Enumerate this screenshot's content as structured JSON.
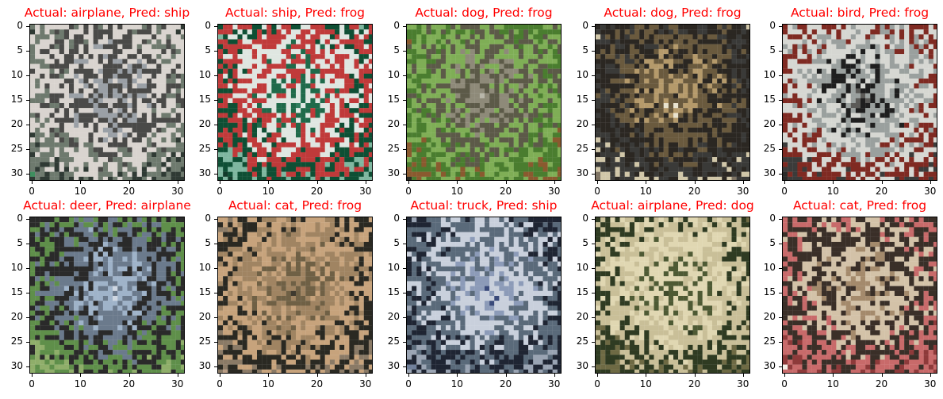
{
  "title_color": "#ff0000",
  "ticks": [
    "0",
    "5",
    "10",
    "15",
    "20",
    "25",
    "30"
  ],
  "xticks": [
    "0",
    "10",
    "20",
    "30"
  ],
  "panels": [
    {
      "title": "Actual: airplane, Pred: ship",
      "subject": "airplane-thumbnail",
      "palette": [
        "#c9c6c4",
        "#9aa0a6",
        "#4a4a48",
        "#d9d4cf",
        "#6e7a6e",
        "#2f3a34",
        "#3f8f5f"
      ]
    },
    {
      "title": "Actual: ship, Pred: frog",
      "subject": "ship-thumbnail",
      "palette": [
        "#2f7f5f",
        "#1f6a4a",
        "#dfe6e1",
        "#c03a3a",
        "#0e4f34",
        "#7fb7a0",
        "#123a2a"
      ]
    },
    {
      "title": "Actual: dog, Pred: frog",
      "subject": "dog-thumbnail",
      "palette": [
        "#b9b7aa",
        "#8e8a79",
        "#5c5a48",
        "#7fae56",
        "#4a7d2f",
        "#8a5a2f",
        "#2a2a22"
      ]
    },
    {
      "title": "Actual: dog, Pred: frog",
      "subject": "dog-thumbnail",
      "palette": [
        "#e9e3cf",
        "#b59a6b",
        "#6a5a3e",
        "#2b2722",
        "#3a3a38",
        "#d1c7a9",
        "#7e7363"
      ]
    },
    {
      "title": "Actual: bird, Pred: frog",
      "subject": "bird-thumbnail",
      "palette": [
        "#5b5a57",
        "#1f1f1f",
        "#9aa09e",
        "#d6d7d2",
        "#7f2a22",
        "#3b3b3a",
        "#2a2a28"
      ]
    },
    {
      "title": "Actual: deer, Pred: airplane",
      "subject": "deer-thumbnail",
      "palette": [
        "#cfd7e2",
        "#9fb3c9",
        "#6b7a8c",
        "#2a2a2a",
        "#5f8f4a",
        "#8fae6a",
        "#3a3f3a"
      ]
    },
    {
      "title": "Actual: cat, Pred: frog",
      "subject": "cat-thumbnail",
      "palette": [
        "#3f3a2f",
        "#6f6045",
        "#a08462",
        "#c7a37c",
        "#2a2922",
        "#8a7a66",
        "#b89c84"
      ]
    },
    {
      "title": "Actual: truck, Pred: ship",
      "subject": "truck-thumbnail",
      "palette": [
        "#3a4a7a",
        "#8c9bb8",
        "#c9d0dc",
        "#5a6a7a",
        "#1f2533",
        "#9aa4b3",
        "#6f7f9a"
      ]
    },
    {
      "title": "Actual: airplane, Pred: dog",
      "subject": "airplane-thumbnail",
      "palette": [
        "#3e4a2a",
        "#4e5a34",
        "#e0d7b2",
        "#c9bf98",
        "#2f3b22",
        "#6e6a44",
        "#f0e8c8"
      ]
    },
    {
      "title": "Actual: cat, Pred: frog",
      "subject": "cat-thumbnail",
      "palette": [
        "#6e5a44",
        "#a48a6c",
        "#d3c2a8",
        "#3a2f28",
        "#c86a6a",
        "#8e3a3a",
        "#f3eee6"
      ]
    }
  ]
}
